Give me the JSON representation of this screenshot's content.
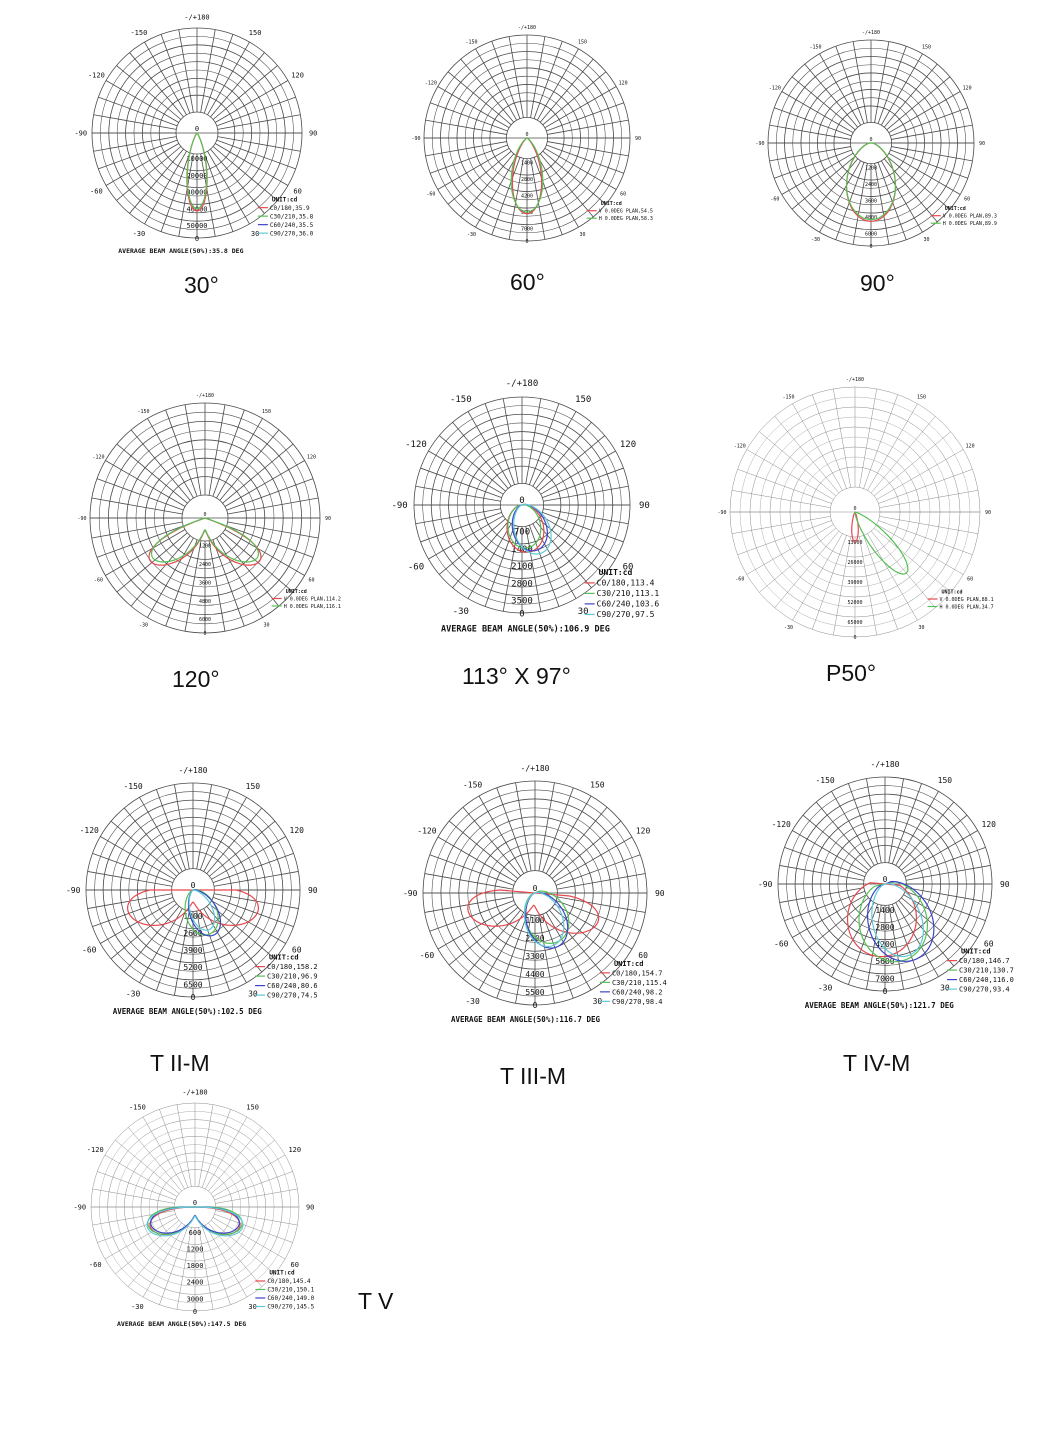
{
  "colors": {
    "grid": "#4a4a4a",
    "red": "#e8474e",
    "green": "#55c155",
    "blue": "#3a45c8",
    "cyan": "#5fc9d9",
    "text": "#111111"
  },
  "charts": [
    {
      "name": "30",
      "caption": "30°",
      "legend_title": "UNIT:cd",
      "legend": [
        {
          "label": "C0/180,35.9",
          "color": "red"
        },
        {
          "label": "C30/210,35.8",
          "color": "green"
        },
        {
          "label": "C60/240,35.5",
          "color": "blue"
        },
        {
          "label": "C90/270,36.0",
          "color": "cyan"
        }
      ],
      "rings": [
        "10000",
        "20000",
        "30000",
        "40000",
        "50000"
      ],
      "average": "AVERAGE BEAM ANGLE(50%):35.8 DEG",
      "series": [
        {
          "color": "red",
          "half": 18,
          "peak": 0.93,
          "mode": "beam"
        },
        {
          "color": "green",
          "half": 18,
          "peak": 0.9,
          "mode": "beam"
        }
      ]
    },
    {
      "name": "60",
      "caption": "60°",
      "legend_title": "UNIT:cd",
      "legend": [
        {
          "label": "V 0.0DEG PLAN,54.5",
          "color": "red"
        },
        {
          "label": "H 0.0DEG PLAN,58.3",
          "color": "green"
        }
      ],
      "rings": [
        "1400",
        "2800",
        "4200",
        "5600",
        "7000"
      ],
      "average": "",
      "series": [
        {
          "color": "red",
          "half": 27,
          "peak": 0.92,
          "mode": "beam"
        },
        {
          "color": "green",
          "half": 30,
          "peak": 0.9,
          "mode": "beam"
        }
      ]
    },
    {
      "name": "90",
      "caption": "90°",
      "legend_title": "UNIT:cd",
      "legend": [
        {
          "label": "V 0.0DEG PLAN,89.3",
          "color": "red"
        },
        {
          "label": "H 0.0DEG PLAN,89.9",
          "color": "green"
        }
      ],
      "rings": [
        "1200",
        "2400",
        "3600",
        "4800",
        "6000"
      ],
      "average": "",
      "series": [
        {
          "color": "red",
          "half": 45,
          "peak": 0.95,
          "mode": "beam"
        },
        {
          "color": "green",
          "half": 46,
          "peak": 0.93,
          "mode": "beam"
        }
      ]
    },
    {
      "name": "120",
      "caption": "120°",
      "legend_title": "UNIT:cd",
      "legend": [
        {
          "label": "V 0.0DEG PLAN,114.2",
          "color": "red"
        },
        {
          "label": "H 0.0DEG PLAN,116.1",
          "color": "green"
        }
      ],
      "rings": [
        "1200",
        "2400",
        "3600",
        "4800",
        "6000"
      ],
      "average": "",
      "series": [
        {
          "color": "red",
          "half": 57,
          "peak": 0.9,
          "mode": "bat"
        },
        {
          "color": "green",
          "half": 58,
          "peak": 0.85,
          "mode": "bat"
        }
      ]
    },
    {
      "name": "113x97",
      "caption": "113°  X 97°",
      "legend_title": "UNIT:cd",
      "legend": [
        {
          "label": "C0/180,113.4",
          "color": "red"
        },
        {
          "label": "C30/210,113.1",
          "color": "green"
        },
        {
          "label": "C60/240,103.6",
          "color": "blue"
        },
        {
          "label": "C90/270,97.5",
          "color": "cyan"
        }
      ],
      "rings": [
        "700",
        "1400",
        "2100",
        "2800",
        "3500"
      ],
      "average": "AVERAGE BEAM ANGLE(50%):106.9 DEG",
      "series": [
        {
          "color": "red",
          "half": 57,
          "peak": 0.55,
          "mode": "beam",
          "tilt": 8
        },
        {
          "color": "green",
          "half": 56,
          "peak": 0.5,
          "mode": "beam",
          "tilt": 6
        },
        {
          "color": "blue",
          "half": 52,
          "peak": 0.55,
          "mode": "beam",
          "tilt": 18
        },
        {
          "color": "cyan",
          "half": 49,
          "peak": 0.6,
          "mode": "beam",
          "tilt": 22
        }
      ]
    },
    {
      "name": "P50",
      "caption": "P50°",
      "legend_title": "UNIT:cd",
      "legend": [
        {
          "label": "V 0.0DEG PLAN,88.1",
          "color": "red"
        },
        {
          "label": "H 0.0DEG PLAN,34.7",
          "color": "green"
        }
      ],
      "rings": [
        "13000",
        "26000",
        "39000",
        "52000",
        "65000"
      ],
      "average": "",
      "series": [
        {
          "color": "red",
          "half": 15,
          "peak": 0.3,
          "mode": "beam"
        },
        {
          "color": "green",
          "half": 18,
          "peak": 0.8,
          "mode": "beam",
          "tilt": 40
        }
      ]
    },
    {
      "name": "TII-M",
      "caption": "T II-M",
      "legend_title": "UNIT:cd",
      "legend": [
        {
          "label": "C0/180,158.2",
          "color": "red"
        },
        {
          "label": "C30/210,96.9",
          "color": "green"
        },
        {
          "label": "C60/240,80.6",
          "color": "blue"
        },
        {
          "label": "C90/270,74.5",
          "color": "cyan"
        }
      ],
      "rings": [
        "1300",
        "2600",
        "3900",
        "5200",
        "6500"
      ],
      "average": "AVERAGE BEAM ANGLE(50%):102.5 DEG",
      "series": [
        {
          "color": "red",
          "half": 79,
          "peak": 0.95,
          "mode": "bat"
        },
        {
          "color": "green",
          "half": 48,
          "peak": 0.55,
          "mode": "beam",
          "tilt": 20
        },
        {
          "color": "blue",
          "half": 40,
          "peak": 0.58,
          "mode": "beam",
          "tilt": 25
        },
        {
          "color": "cyan",
          "half": 37,
          "peak": 0.5,
          "mode": "beam",
          "tilt": 22
        }
      ]
    },
    {
      "name": "TIII-M",
      "caption": "T III-M",
      "legend_title": "UNIT:cd",
      "legend": [
        {
          "label": "C0/180,154.7",
          "color": "red"
        },
        {
          "label": "C30/210,115.4",
          "color": "green"
        },
        {
          "label": "C60/240,98.2",
          "color": "blue"
        },
        {
          "label": "C90/270,98.4",
          "color": "cyan"
        }
      ],
      "rings": [
        "1100",
        "2200",
        "3300",
        "4400",
        "5500"
      ],
      "average": "AVERAGE BEAM ANGLE(50%):116.7 DEG",
      "series": [
        {
          "color": "red",
          "half": 77,
          "peak": 0.92,
          "mode": "bat",
          "tilt": -5
        },
        {
          "color": "green",
          "half": 58,
          "peak": 0.6,
          "mode": "beam",
          "tilt": 25
        },
        {
          "color": "blue",
          "half": 49,
          "peak": 0.65,
          "mode": "beam",
          "tilt": 22
        },
        {
          "color": "cyan",
          "half": 49,
          "peak": 0.62,
          "mode": "beam",
          "tilt": 18
        }
      ]
    },
    {
      "name": "TIV-M",
      "caption": "T IV-M",
      "legend_title": "UNIT:cd",
      "legend": [
        {
          "label": "C0/180,146.7",
          "color": "red"
        },
        {
          "label": "C30/210,130.7",
          "color": "green"
        },
        {
          "label": "C60/240,116.0",
          "color": "blue"
        },
        {
          "label": "C90/270,93.4",
          "color": "cyan"
        }
      ],
      "rings": [
        "1400",
        "2800",
        "4200",
        "5600",
        "7000"
      ],
      "average": "AVERAGE BEAM ANGLE(50%):121.7 DEG",
      "series": [
        {
          "color": "red",
          "half": 73,
          "peak": 0.85,
          "mode": "beam",
          "tilt": -5
        },
        {
          "color": "green",
          "half": 65,
          "peak": 0.92,
          "mode": "beam",
          "tilt": 12
        },
        {
          "color": "blue",
          "half": 58,
          "peak": 0.95,
          "mode": "beam",
          "tilt": 22
        },
        {
          "color": "cyan",
          "half": 47,
          "peak": 0.88,
          "mode": "beam",
          "tilt": 18
        }
      ]
    },
    {
      "name": "TV",
      "caption": "T V",
      "legend_title": "UNIT:cd",
      "legend": [
        {
          "label": "C0/180,145.4",
          "color": "red"
        },
        {
          "label": "C30/210,150.1",
          "color": "green"
        },
        {
          "label": "C60/240,149.0",
          "color": "blue"
        },
        {
          "label": "C90/270,145.5",
          "color": "cyan"
        }
      ],
      "rings": [
        "600",
        "1200",
        "1800",
        "2400",
        "3000"
      ],
      "average": "AVERAGE BEAM ANGLE(50%):147.5 DEG",
      "series": [
        {
          "color": "red",
          "half": 72,
          "peak": 0.7,
          "mode": "bat"
        },
        {
          "color": "green",
          "half": 75,
          "peak": 0.72,
          "mode": "bat"
        },
        {
          "color": "blue",
          "half": 74,
          "peak": 0.68,
          "mode": "bat"
        },
        {
          "color": "cyan",
          "half": 73,
          "peak": 0.74,
          "mode": "bat"
        }
      ]
    }
  ],
  "angle_labels": {
    "top": "-/+180",
    "p150": "150",
    "m150": "-150",
    "p120": "120",
    "m120": "-120",
    "p90": "90",
    "m90": "-90",
    "p60": "60",
    "m60": "-60",
    "p30": "30",
    "m30": "-30",
    "zero": "0"
  }
}
